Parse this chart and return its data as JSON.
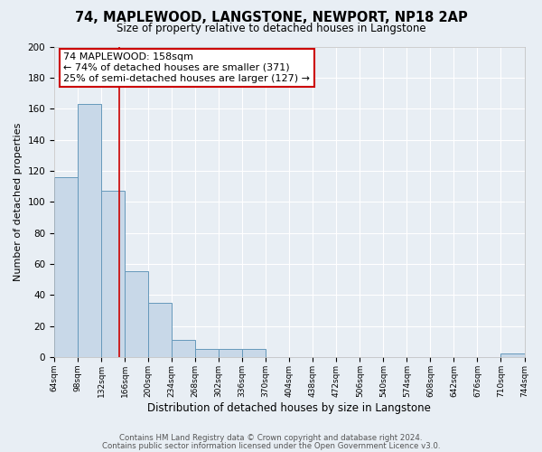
{
  "title": "74, MAPLEWOOD, LANGSTONE, NEWPORT, NP18 2AP",
  "subtitle": "Size of property relative to detached houses in Langstone",
  "xlabel": "Distribution of detached houses by size in Langstone",
  "ylabel": "Number of detached properties",
  "bin_edges": [
    64,
    98,
    132,
    166,
    200,
    234,
    268,
    302,
    336,
    370,
    404,
    438,
    472,
    506,
    540,
    574,
    608,
    642,
    676,
    710,
    744
  ],
  "bar_heights": [
    116,
    163,
    107,
    55,
    35,
    11,
    5,
    5,
    5,
    0,
    0,
    0,
    0,
    0,
    0,
    0,
    0,
    0,
    0,
    2
  ],
  "bar_color": "#c8d8e8",
  "bar_edge_color": "#6699bb",
  "background_color": "#e8eef4",
  "grid_color": "#ffffff",
  "vline_x": 158,
  "vline_color": "#cc0000",
  "annotation_title": "74 MAPLEWOOD: 158sqm",
  "annotation_line1": "← 74% of detached houses are smaller (371)",
  "annotation_line2": "25% of semi-detached houses are larger (127) →",
  "annotation_box_color": "#ffffff",
  "annotation_box_edge": "#cc0000",
  "ylim": [
    0,
    200
  ],
  "yticks": [
    0,
    20,
    40,
    60,
    80,
    100,
    120,
    140,
    160,
    180,
    200
  ],
  "footer1": "Contains HM Land Registry data © Crown copyright and database right 2024.",
  "footer2": "Contains public sector information licensed under the Open Government Licence v3.0."
}
